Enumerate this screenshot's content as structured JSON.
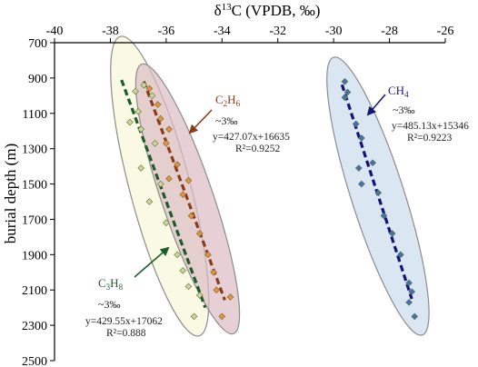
{
  "chart_data": {
    "type": "scatter",
    "title": "",
    "xlabel": "δ13C (VPDB, ‰)",
    "xlabel_parts": [
      "δ",
      "13",
      "C (VPDB, ‰)"
    ],
    "ylabel": "burial depth (m)",
    "xlim": [
      -40,
      -26
    ],
    "ylim": [
      700,
      2500
    ],
    "y_inverted": true,
    "x_axis_position": "top",
    "grid": false,
    "x_ticks": [
      -40,
      -38,
      -36,
      -34,
      -32,
      -30,
      -28,
      -26
    ],
    "y_ticks": [
      700,
      900,
      1100,
      1300,
      1500,
      1700,
      1900,
      2100,
      2300,
      2500
    ],
    "series": [
      {
        "name": "C3H8",
        "name_parts": [
          "C",
          "3",
          "H",
          "8"
        ],
        "color": "#c8d89a",
        "trend_color": "#1a5c2a",
        "fill_color": "#f6f6d8",
        "uncertainty": "~3‰",
        "equation": "y=429.55x+17062",
        "r2": "R²=0.888",
        "trend": {
          "slope": 429.55,
          "intercept": 17062,
          "x_range": [
            -37.6,
            -34.6
          ]
        },
        "points": [
          [
            -37.1,
            975
          ],
          [
            -36.8,
            940
          ],
          [
            -36.5,
            1000
          ],
          [
            -37.0,
            1090
          ],
          [
            -36.9,
            1190
          ],
          [
            -37.3,
            1150
          ],
          [
            -36.4,
            1270
          ],
          [
            -36.9,
            1410
          ],
          [
            -36.2,
            1500
          ],
          [
            -36.6,
            1600
          ],
          [
            -36.0,
            1720
          ],
          [
            -35.6,
            1900
          ],
          [
            -35.4,
            1990
          ],
          [
            -35.2,
            2080
          ],
          [
            -34.8,
            2130
          ],
          [
            -35.0,
            2250
          ]
        ]
      },
      {
        "name": "C2H6",
        "name_parts": [
          "C",
          "2",
          "H",
          "6"
        ],
        "color": "#e8913a",
        "trend_color": "#8b3a1a",
        "fill_color": "#dcbcc4",
        "uncertainty": "~3‰",
        "equation": "y=427.07x+16635",
        "r2": "R²=0.9252",
        "trend": {
          "slope": 427.07,
          "intercept": 16635,
          "x_range": [
            -36.8,
            -33.9
          ]
        },
        "points": [
          [
            -36.6,
            960
          ],
          [
            -36.3,
            1050
          ],
          [
            -36.2,
            1130
          ],
          [
            -35.9,
            1190
          ],
          [
            -36.0,
            1270
          ],
          [
            -35.6,
            1390
          ],
          [
            -35.9,
            1470
          ],
          [
            -35.2,
            1480
          ],
          [
            -35.4,
            1560
          ],
          [
            -35.1,
            1680
          ],
          [
            -34.8,
            1780
          ],
          [
            -34.5,
            1900
          ],
          [
            -34.3,
            2000
          ],
          [
            -34.2,
            2100
          ],
          [
            -33.7,
            2140
          ],
          [
            -34.0,
            2250
          ]
        ]
      },
      {
        "name": "CH4",
        "name_parts": [
          "CH",
          "4"
        ],
        "color": "#3a76b0",
        "trend_color": "#13137a",
        "fill_color": "#cadcec",
        "uncertainty": "~3‰",
        "equation": "y=485.13x+15346",
        "r2": "R²=0.9223",
        "trend": {
          "slope": 485.13,
          "intercept": 15346,
          "x_range": [
            -29.7,
            -27.2
          ]
        },
        "points": [
          [
            -29.6,
            920
          ],
          [
            -29.5,
            980
          ],
          [
            -29.6,
            1010
          ],
          [
            -29.2,
            1160
          ],
          [
            -29.0,
            1240
          ],
          [
            -29.1,
            1410
          ],
          [
            -28.6,
            1380
          ],
          [
            -29.0,
            1500
          ],
          [
            -28.4,
            1550
          ],
          [
            -28.2,
            1680
          ],
          [
            -27.9,
            1780
          ],
          [
            -27.6,
            1900
          ],
          [
            -27.3,
            2060
          ],
          [
            -27.2,
            2110
          ],
          [
            -27.3,
            2170
          ],
          [
            -27.1,
            2250
          ]
        ]
      }
    ]
  }
}
